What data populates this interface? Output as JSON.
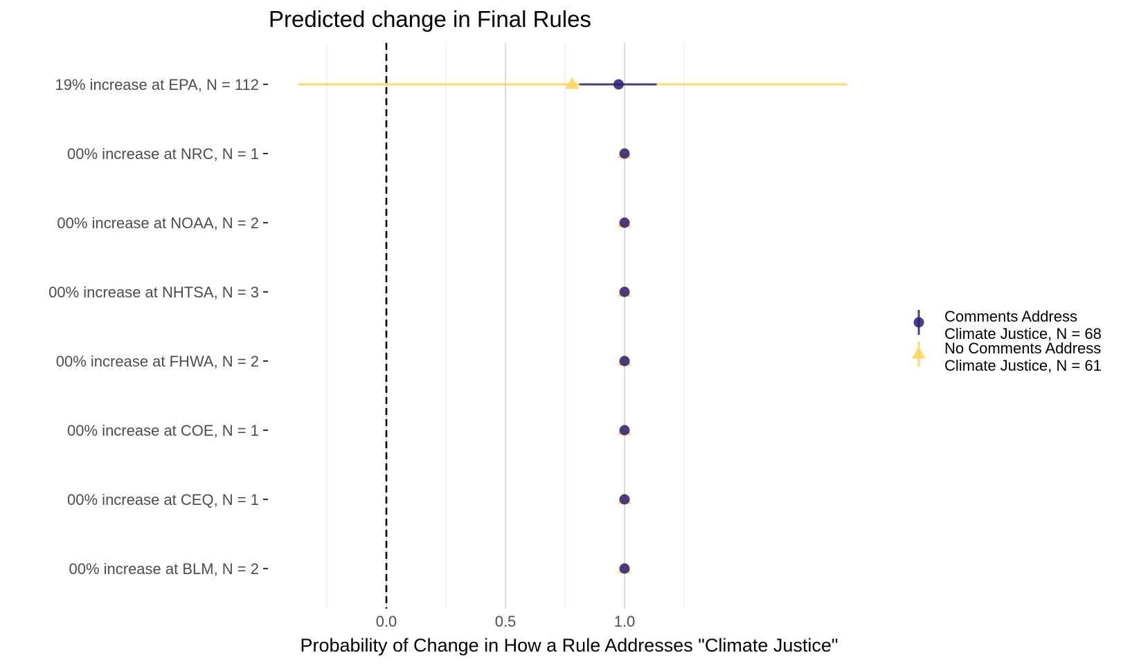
{
  "chart_data": {
    "type": "scatter",
    "subtype": "forest-plot-with-intervals",
    "title": "Predicted change in Final Rules",
    "xlabel": "Probability of Change in How a Rule Addresses \"Climate Justice\"",
    "ylabel": "",
    "xlim": [
      -0.45,
      1.45
    ],
    "xticks": [
      0.0,
      0.5,
      1.0
    ],
    "xtick_labels": [
      "0.0",
      "0.5",
      "1.0"
    ],
    "minor_gridlines": [
      -0.25,
      0.25,
      0.75,
      1.25
    ],
    "major_gridlines": [
      0.0,
      0.5,
      1.0
    ],
    "reference_line": {
      "x": 0,
      "style": "dashed",
      "color": "#000000"
    },
    "grid": true,
    "categories": [
      "19% increase at EPA, N = 112",
      "00% increase at NRC, N = 1",
      "00% increase at NOAA, N = 2",
      "00% increase at NHTSA, N = 3",
      "00% increase at FHWA, N = 2",
      "00% increase at COE, N = 1",
      "00% increase at CEQ, N = 1",
      "00% increase at BLM, N = 2"
    ],
    "series": [
      {
        "name": "Comments Address\nClimate Justice, N = 68",
        "legend_lines": [
          "Comments Address",
          "Climate Justice, N = 68"
        ],
        "marker": "circle",
        "color": "#2c1d78",
        "opacity": 0.85,
        "values": [
          0.975,
          1.0,
          1.0,
          1.0,
          1.0,
          1.0,
          1.0,
          1.0
        ],
        "lower": [
          0.81,
          1.0,
          1.0,
          1.0,
          1.0,
          1.0,
          1.0,
          1.0
        ],
        "upper": [
          1.135,
          1.0,
          1.0,
          1.0,
          1.0,
          1.0,
          1.0,
          1.0
        ]
      },
      {
        "name": "No Comments Address\nClimate Justice, N = 61",
        "legend_lines": [
          "No Comments Address",
          "Climate Justice, N = 61"
        ],
        "marker": "triangle",
        "color": "#fdd44f",
        "opacity": 0.85,
        "values": [
          0.78,
          1.0,
          1.0,
          1.0,
          1.0,
          1.0,
          1.0,
          1.0
        ],
        "lower": [
          -0.37,
          1.0,
          1.0,
          1.0,
          1.0,
          1.0,
          1.0,
          1.0
        ],
        "upper": [
          1.935,
          1.0,
          1.0,
          1.0,
          1.0,
          1.0,
          1.0,
          1.0
        ]
      }
    ],
    "legend_position": "right"
  },
  "colors": {
    "minor_grid": "#ebebeb",
    "major_grid": "#dcdcdc",
    "tick_text": "#4d4d4d",
    "text": "#000000"
  }
}
